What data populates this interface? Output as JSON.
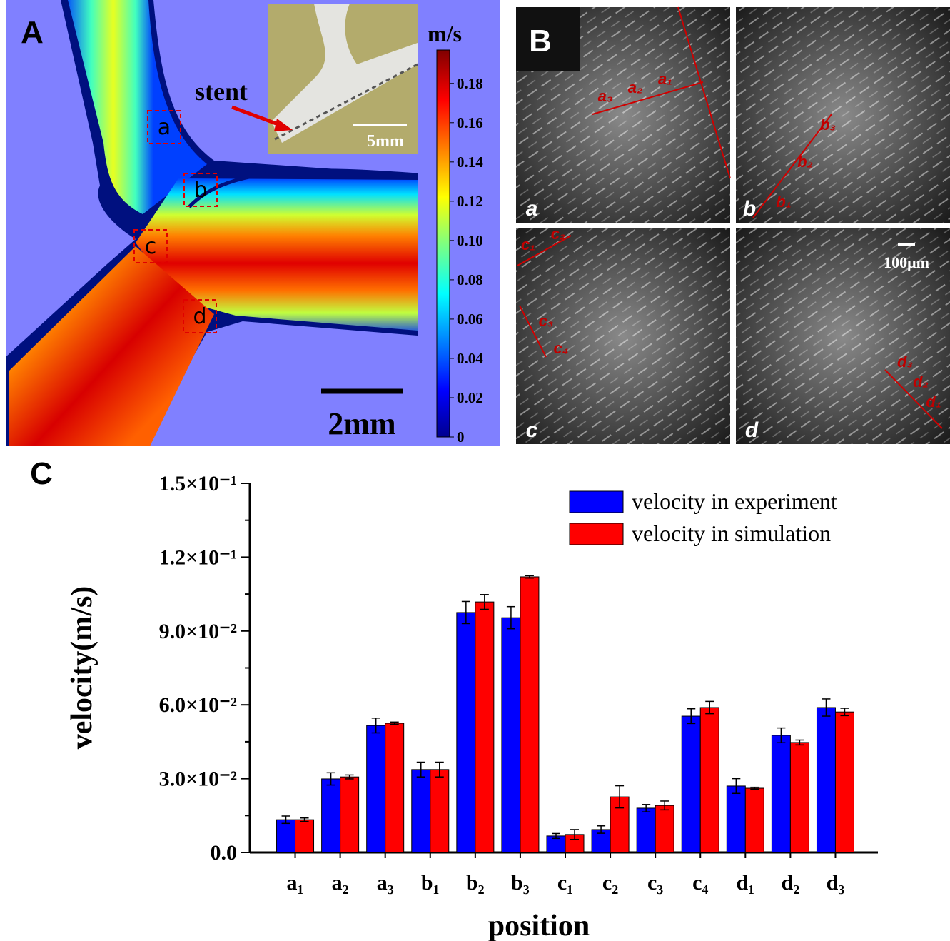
{
  "panel_a": {
    "label": "A",
    "stent_label": "stent",
    "inset_scale": "5mm",
    "scale_bar": "2mm",
    "regions": [
      "a",
      "b",
      "c",
      "d"
    ],
    "colorbar": {
      "title": "m/s",
      "lim": [
        0,
        0.197
      ],
      "ticks": [
        0,
        0.02,
        0.04,
        0.06,
        0.08,
        {
          "value": 0.1,
          "label": "0.10"
        },
        0.12,
        0.14,
        0.16,
        0.18
      ]
    }
  },
  "panel_b": {
    "label": "B",
    "subpanels": [
      "a",
      "b",
      "c",
      "d"
    ],
    "scale_bar": "100μm",
    "points": {
      "a": [
        "a₃",
        "a₂",
        "a₁"
      ],
      "b": [
        "b₃",
        "b₂",
        "b₁"
      ],
      "c": [
        "c₁",
        "c₂",
        "c₃",
        "c₄"
      ],
      "d": [
        "d₃",
        "d₂",
        "d₁"
      ]
    }
  },
  "chart_data": {
    "type": "bar",
    "panel_label": "C",
    "x_label": "position",
    "y_label": "velocity(m/s)",
    "categories": [
      "a₁",
      "a₂",
      "a₃",
      "b₁",
      "b₂",
      "b₃",
      "c₁",
      "c₂",
      "c₃",
      "c₄",
      "d₁",
      "d₂",
      "d₃"
    ],
    "series": [
      {
        "name": "velocity in experiment",
        "color": "#0000ff",
        "values": [
          0.0133,
          0.0299,
          0.0516,
          0.0337,
          0.0975,
          0.0954,
          0.0067,
          0.0093,
          0.018,
          0.0554,
          0.027,
          0.0476,
          0.0589
        ],
        "errors": [
          0.0015,
          0.0025,
          0.003,
          0.003,
          0.0045,
          0.0045,
          0.001,
          0.0015,
          0.0015,
          0.003,
          0.003,
          0.003,
          0.0035
        ]
      },
      {
        "name": "velocity in simulation",
        "color": "#ff0000",
        "values": [
          0.0133,
          0.0307,
          0.0525,
          0.0337,
          0.1018,
          0.112,
          0.0073,
          0.0226,
          0.0191,
          0.0589,
          0.0261,
          0.0447,
          0.0571
        ],
        "errors": [
          0.0007,
          0.0008,
          0.0005,
          0.003,
          0.003,
          0.0005,
          0.002,
          0.0045,
          0.0018,
          0.0025,
          0.0004,
          0.001,
          0.0015
        ]
      }
    ],
    "ylim": [
      0,
      0.15
    ],
    "yticks": [
      {
        "value": 0,
        "label": "0.0"
      },
      {
        "value": 0.03,
        "label": "3.0×10⁻²"
      },
      {
        "value": 0.06,
        "label": "6.0×10⁻²"
      },
      {
        "value": 0.09,
        "label": "9.0×10⁻²"
      },
      {
        "value": 0.12,
        "label": "1.2×10⁻¹"
      },
      {
        "value": 0.15,
        "label": "1.5×10⁻¹"
      }
    ],
    "legend": "upper right"
  }
}
